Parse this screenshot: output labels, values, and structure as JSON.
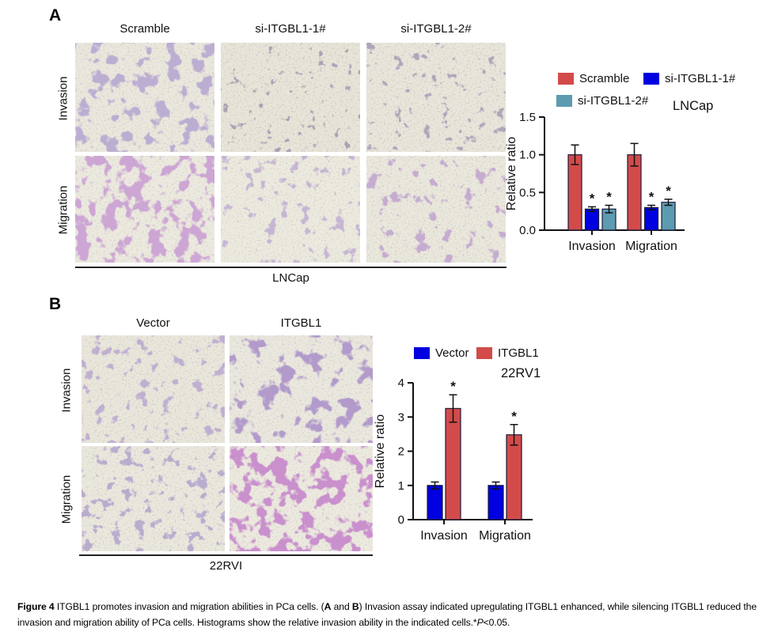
{
  "figure": {
    "panel_a": {
      "label": "A",
      "column_labels": [
        "Scramble",
        "si-ITGBL1-1#",
        "si-ITGBL1-2#"
      ],
      "row_labels": [
        "Invasion",
        "Migration"
      ],
      "cell_line_label": "LNCap"
    },
    "panel_b": {
      "label": "B",
      "column_labels": [
        "Vector",
        "ITGBL1"
      ],
      "row_labels": [
        "Invasion",
        "Migration"
      ],
      "cell_line_label": "22RVI"
    },
    "caption": {
      "label": "Figure 4",
      "text_before_ab": " ITGBL1 promotes invasion and migration abilities in PCa cells. (",
      "bold_a": "A",
      "and_text": " and ",
      "bold_b": "B",
      "text_after_ab": ") Invasion assay indicated upregulating ITGBL1 enhanced, while silencing ITGBL1 reduced the invasion and migration ability of PCa cells. Histograms show the relative invasion ability in the indicated cells.*",
      "p_symbol": "P",
      "p_value": "<0.05."
    }
  },
  "chart_data": [
    {
      "type": "bar",
      "title": "LNCap",
      "ylabel": "Relative ratio",
      "xlabel": "",
      "ylim": [
        0,
        1.5
      ],
      "yticks": [
        0,
        0.5,
        1.0,
        1.5
      ],
      "ytick_labels": [
        "0.0",
        "0.5",
        "1.0",
        "1.5"
      ],
      "categories": [
        "Invasion",
        "Migration"
      ],
      "grid": false,
      "legend_position": "top",
      "series": [
        {
          "name": "Scramble",
          "color": "#d24b4a",
          "values": [
            1.0,
            1.0
          ],
          "errors": [
            0.13,
            0.15
          ],
          "sig": [
            false,
            false
          ]
        },
        {
          "name": "si-ITGBL1-1#",
          "color": "#0000e0",
          "values": [
            0.28,
            0.3
          ],
          "errors": [
            0.03,
            0.03
          ],
          "sig": [
            true,
            true
          ]
        },
        {
          "name": "si-ITGBL1-2#",
          "color": "#5d9bb0",
          "values": [
            0.28,
            0.37
          ],
          "errors": [
            0.05,
            0.04
          ],
          "sig": [
            true,
            true
          ]
        }
      ]
    },
    {
      "type": "bar",
      "title": "22RV1",
      "ylabel": "Relative ratio",
      "xlabel": "",
      "ylim": [
        0,
        4
      ],
      "yticks": [
        0,
        1,
        2,
        3,
        4
      ],
      "ytick_labels": [
        "0",
        "1",
        "2",
        "3",
        "4"
      ],
      "categories": [
        "Invasion",
        "Migration"
      ],
      "grid": false,
      "legend_position": "top",
      "series": [
        {
          "name": "Vector",
          "color": "#0000e0",
          "values": [
            1.0,
            1.0
          ],
          "errors": [
            0.1,
            0.1
          ],
          "sig": [
            false,
            false
          ]
        },
        {
          "name": "ITGBL1",
          "color": "#d24b4a",
          "values": [
            3.25,
            2.48
          ],
          "errors": [
            0.4,
            0.3
          ],
          "sig": [
            true,
            true
          ]
        }
      ]
    }
  ]
}
